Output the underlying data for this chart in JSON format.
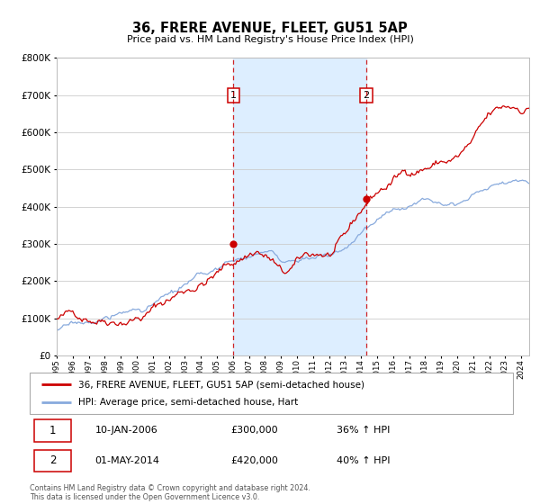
{
  "title": "36, FRERE AVENUE, FLEET, GU51 5AP",
  "subtitle": "Price paid vs. HM Land Registry's House Price Index (HPI)",
  "legend_line1": "36, FRERE AVENUE, FLEET, GU51 5AP (semi-detached house)",
  "legend_line2": "HPI: Average price, semi-detached house, Hart",
  "footnote1": "Contains HM Land Registry data © Crown copyright and database right 2024.",
  "footnote2": "This data is licensed under the Open Government Licence v3.0.",
  "annotation1_label": "1",
  "annotation1_date": "10-JAN-2006",
  "annotation1_price": "£300,000",
  "annotation1_hpi": "36% ↑ HPI",
  "annotation2_label": "2",
  "annotation2_date": "01-MAY-2014",
  "annotation2_price": "£420,000",
  "annotation2_hpi": "40% ↑ HPI",
  "sale1_year": 2006.04,
  "sale1_value": 300000,
  "sale2_year": 2014.33,
  "sale2_value": 420000,
  "vline1_year": 2006.04,
  "vline2_year": 2014.33,
  "xmin": 1995.0,
  "xmax": 2024.5,
  "ymin": 0,
  "ymax": 800000,
  "red_color": "#cc0000",
  "blue_color": "#88aadd",
  "shade_color": "#ddeeff",
  "background_color": "#ffffff",
  "grid_color": "#cccccc"
}
